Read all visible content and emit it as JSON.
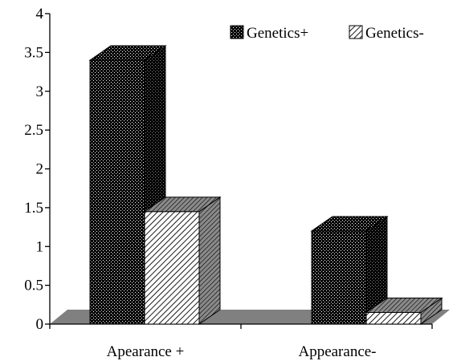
{
  "chart_data": {
    "type": "bar",
    "categories": [
      "Apearance +",
      "Appearance-"
    ],
    "series": [
      {
        "name": "Genetics+",
        "values": [
          3.4,
          1.2
        ],
        "pattern": "dots"
      },
      {
        "name": "Genetics-",
        "values": [
          1.45,
          0.15
        ],
        "pattern": "hatch"
      }
    ],
    "ylim": [
      0,
      4
    ],
    "yticks": [
      "0",
      "0.5",
      "1",
      "1.5",
      "2",
      "2.5",
      "3",
      "3.5",
      "4"
    ],
    "legend": "top-right",
    "grid": false,
    "colors": {
      "face": "#000000",
      "hatch_bg": "#ffffff",
      "floor": "#808080",
      "side": "#7a7a7a"
    }
  }
}
